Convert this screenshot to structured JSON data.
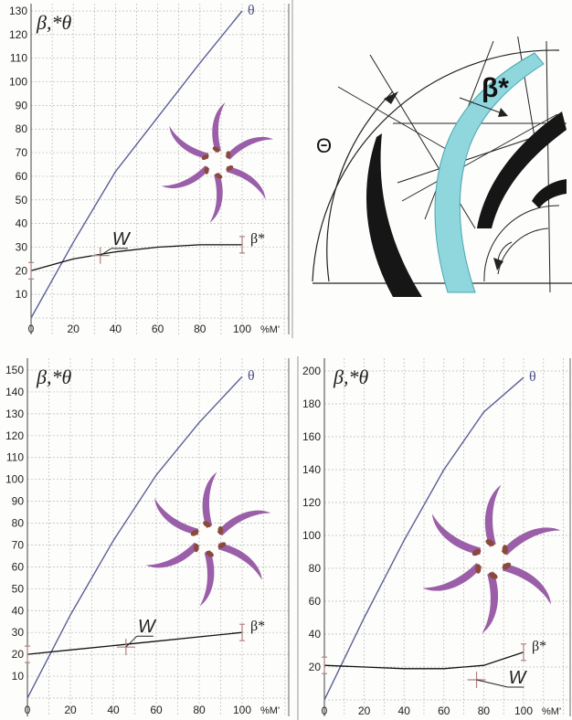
{
  "chart_data": [
    {
      "type": "line",
      "corner_label": "β,*θ",
      "xlabel": "%M'",
      "xlim": [
        0,
        100
      ],
      "ylim": [
        0,
        130
      ],
      "x_ticks": [
        "0",
        "20",
        "40",
        "60",
        "80",
        "100"
      ],
      "y_ticks": [
        "10",
        "20",
        "30",
        "40",
        "50",
        "60",
        "70",
        "80",
        "90",
        "100",
        "110",
        "120",
        "130"
      ],
      "series": [
        {
          "name": "θ",
          "color": "#5a5f96",
          "points": [
            [
              0,
              0
            ],
            [
              20,
              32
            ],
            [
              40,
              62
            ],
            [
              60,
              85
            ],
            [
              80,
              108
            ],
            [
              100,
              130
            ]
          ]
        },
        {
          "name": "β*",
          "color": "#111111",
          "points": [
            [
              0,
              20
            ],
            [
              20,
              25
            ],
            [
              40,
              28
            ],
            [
              60,
              30
            ],
            [
              80,
              31
            ],
            [
              100,
              31
            ]
          ]
        }
      ],
      "annotations": [
        {
          "text": "W",
          "x": 38,
          "y": 31
        }
      ]
    },
    {
      "type": "line",
      "corner_label": "β,*θ",
      "xlabel": "%M'",
      "xlim": [
        0,
        100
      ],
      "ylim": [
        0,
        150
      ],
      "x_ticks": [
        "0",
        "20",
        "40",
        "60",
        "80",
        "100"
      ],
      "y_ticks": [
        "10",
        "20",
        "30",
        "40",
        "50",
        "60",
        "70",
        "80",
        "90",
        "100",
        "110",
        "120",
        "130",
        "140",
        "150"
      ],
      "series": [
        {
          "name": "θ",
          "color": "#5a5f96",
          "points": [
            [
              0,
              0
            ],
            [
              20,
              38
            ],
            [
              40,
              72
            ],
            [
              60,
              102
            ],
            [
              80,
              126
            ],
            [
              100,
              147
            ]
          ]
        },
        {
          "name": "β*",
          "color": "#111111",
          "points": [
            [
              0,
              20
            ],
            [
              20,
              22
            ],
            [
              40,
              24
            ],
            [
              50,
              25
            ],
            [
              60,
              26
            ],
            [
              80,
              28
            ],
            [
              100,
              30
            ]
          ]
        }
      ],
      "annotations": [
        {
          "text": "W",
          "x": 51,
          "y": 30
        }
      ]
    },
    {
      "type": "line",
      "corner_label": "β,*θ",
      "xlabel": "%M'",
      "xlim": [
        0,
        100
      ],
      "ylim": [
        0,
        200
      ],
      "x_ticks": [
        "0",
        "20",
        "40",
        "60",
        "80",
        "100"
      ],
      "y_ticks": [
        "20",
        "40",
        "60",
        "80",
        "100",
        "120",
        "140",
        "160",
        "180",
        "200"
      ],
      "series": [
        {
          "name": "θ",
          "color": "#5a5f96",
          "points": [
            [
              0,
              0
            ],
            [
              20,
              50
            ],
            [
              40,
              97
            ],
            [
              60,
              140
            ],
            [
              80,
              175
            ],
            [
              100,
              196
            ]
          ]
        },
        {
          "name": "β*",
          "color": "#111111",
          "points": [
            [
              0,
              21
            ],
            [
              20,
              20
            ],
            [
              40,
              19
            ],
            [
              60,
              19
            ],
            [
              80,
              21
            ],
            [
              100,
              29
            ]
          ]
        }
      ],
      "annotations": [
        {
          "text": "W",
          "x": 92,
          "y": 10
        }
      ]
    }
  ],
  "diagram": {
    "labels": {
      "beta": "β*",
      "theta": "Θ"
    },
    "colors": {
      "blade_blue": "#8fd6dd",
      "blade_black": "#161616"
    }
  },
  "colors": {
    "theta_curve": "#5a5f96",
    "beta_curve": "#111111",
    "spiral": "#9a5fa8",
    "marker": "#b08080"
  }
}
